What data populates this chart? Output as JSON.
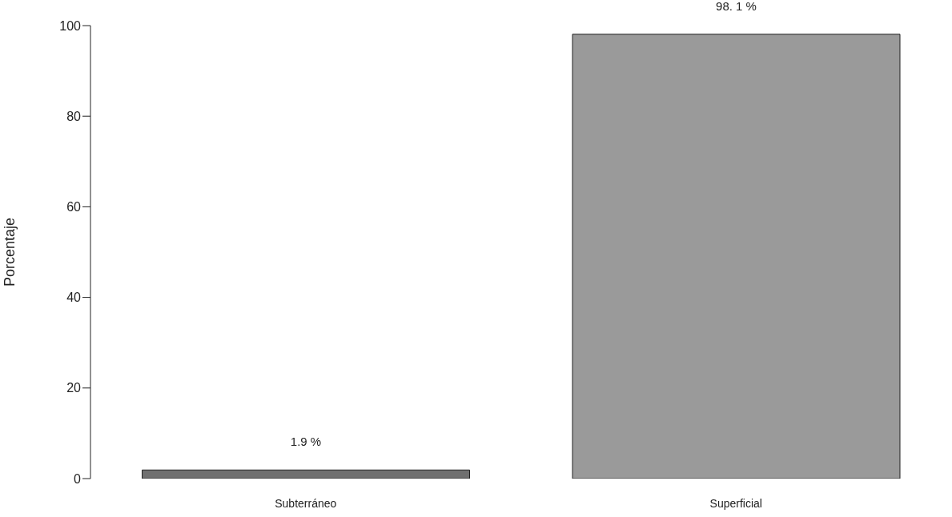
{
  "chart_data": {
    "type": "bar",
    "ylabel": "Porcentaje",
    "categories": [
      "Subterráneo",
      "Superficial"
    ],
    "values": [
      1.9,
      98.1
    ],
    "colors": [
      "#707070",
      "#9a9a9a"
    ],
    "value_labels": [
      "1.9 %",
      "98. 1 %"
    ],
    "ylim": [
      0,
      100
    ],
    "yticks": [
      0,
      20,
      40,
      60,
      80,
      100
    ],
    "grid": false
  }
}
